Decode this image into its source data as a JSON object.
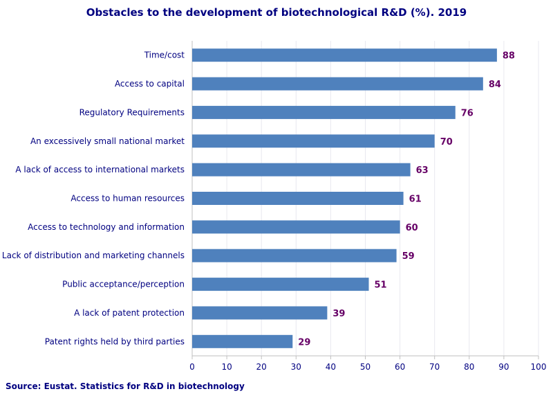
{
  "title": "Obstacles to the development of biotechnological R&D (%). 2019",
  "source": "Source: Eustat. Statistics for R&D in biotechnology",
  "colors": {
    "bar": "#4f81bd",
    "text": "#000080",
    "value": "#660066",
    "grid": "#e8e8ef",
    "axis": "#bfbfbf"
  },
  "chart_data": {
    "type": "bar",
    "orientation": "horizontal",
    "title": "Obstacles to the development of biotechnological R&D (%). 2019",
    "xlabel": "",
    "ylabel": "",
    "xlim": [
      0,
      100
    ],
    "ticks": [
      0,
      10,
      20,
      30,
      40,
      50,
      60,
      70,
      80,
      90,
      100
    ],
    "categories": [
      "Time/cost",
      "Access to capital",
      "Regulatory Requirements",
      "An excessively small national market",
      "A lack of access to international markets",
      "Access to human resources",
      "Access to technology and information",
      "Lack of distribution and marketing channels",
      "Public acceptance/perception",
      "A lack of patent protection",
      "Patent rights held by third parties"
    ],
    "values": [
      88,
      84,
      76,
      70,
      63,
      61,
      60,
      59,
      51,
      39,
      29
    ],
    "grid": true
  }
}
